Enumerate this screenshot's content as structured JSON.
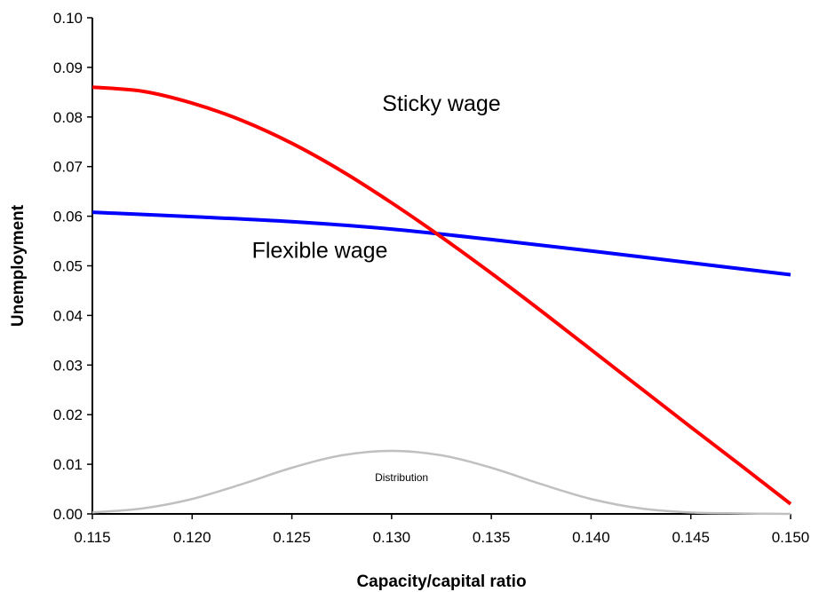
{
  "chart_data": {
    "type": "line",
    "xlabel": "Capacity/capital ratio",
    "ylabel": "Unemployment",
    "xlim": [
      0.115,
      0.15
    ],
    "ylim": [
      0.0,
      0.1
    ],
    "x_ticks": [
      "0.115",
      "0.120",
      "0.125",
      "0.130",
      "0.135",
      "0.140",
      "0.145",
      "0.150"
    ],
    "y_ticks": [
      "0.00",
      "0.01",
      "0.02",
      "0.03",
      "0.04",
      "0.05",
      "0.06",
      "0.07",
      "0.08",
      "0.09",
      "0.10"
    ],
    "grid": false,
    "series": [
      {
        "name": "Sticky wage",
        "color": "#ff0000",
        "points": [
          [
            0.115,
            0.086
          ],
          [
            0.1175,
            0.0852
          ],
          [
            0.12,
            0.0828
          ],
          [
            0.1225,
            0.0793
          ],
          [
            0.125,
            0.0747
          ],
          [
            0.1275,
            0.0691
          ],
          [
            0.13,
            0.0627
          ],
          [
            0.1325,
            0.0558
          ],
          [
            0.135,
            0.0485
          ],
          [
            0.1375,
            0.0409
          ],
          [
            0.14,
            0.0331
          ],
          [
            0.1425,
            0.0253
          ],
          [
            0.145,
            0.0175
          ],
          [
            0.1475,
            0.0098
          ],
          [
            0.15,
            0.002
          ]
        ]
      },
      {
        "name": "Flexible wage",
        "color": "#0000ff",
        "points": [
          [
            0.115,
            0.0608
          ],
          [
            0.12,
            0.0599
          ],
          [
            0.125,
            0.0589
          ],
          [
            0.13,
            0.0574
          ],
          [
            0.135,
            0.0553
          ],
          [
            0.14,
            0.053
          ],
          [
            0.145,
            0.0506
          ],
          [
            0.15,
            0.0482
          ]
        ]
      },
      {
        "name": "Distribution",
        "color": "#c0c0c0",
        "points": [
          [
            0.115,
            0.0003
          ],
          [
            0.1175,
            0.0011
          ],
          [
            0.12,
            0.003
          ],
          [
            0.1225,
            0.006
          ],
          [
            0.125,
            0.0093
          ],
          [
            0.1275,
            0.0118
          ],
          [
            0.13,
            0.0127
          ],
          [
            0.1325,
            0.0118
          ],
          [
            0.135,
            0.0093
          ],
          [
            0.1375,
            0.006
          ],
          [
            0.14,
            0.003
          ],
          [
            0.1425,
            0.0011
          ],
          [
            0.145,
            0.0003
          ],
          [
            0.1475,
            0.0001
          ],
          [
            0.15,
            0.0
          ]
        ]
      }
    ],
    "annotations": [
      {
        "text": "Sticky wage",
        "x": 0.1325,
        "y": 0.0812,
        "size": "large"
      },
      {
        "text": "Flexible wage",
        "x": 0.1264,
        "y": 0.0516,
        "size": "large"
      },
      {
        "text": "Distribution",
        "x": 0.1305,
        "y": 0.0066,
        "size": "small"
      }
    ]
  }
}
